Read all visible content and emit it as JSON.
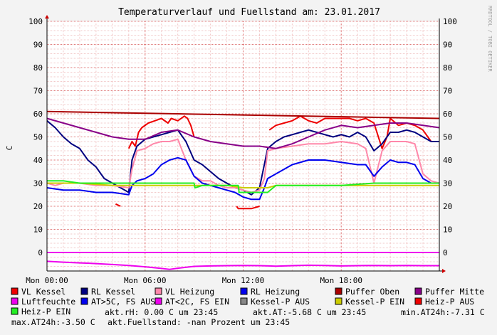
{
  "chart_data": {
    "type": "line",
    "title": "Temperaturverlauf und Fuellstand am: 23.01.2017",
    "ylabel": "C",
    "xlabel": "",
    "ylim": [
      -8,
      100
    ],
    "xlim": [
      0,
      24
    ],
    "y_ticks": [
      0,
      10,
      20,
      30,
      40,
      50,
      60,
      70,
      80,
      90,
      100
    ],
    "x_ticks": [
      {
        "x": 0,
        "label": "Mon 00:00"
      },
      {
        "x": 6,
        "label": "Mon 06:00"
      },
      {
        "x": 12,
        "label": "Mon 12:00"
      },
      {
        "x": 18,
        "label": "Mon 18:00"
      }
    ],
    "watermark": "RRDTOOL / TOBI OETIKER",
    "grid": true,
    "legend_position": "bottom",
    "series": [
      {
        "name": "VL Kessel",
        "color": "#EE0000",
        "x": [
          4.2,
          4.5,
          4.55,
          5.0,
          5.2,
          5.4,
          5.6,
          5.8,
          6.2,
          6.6,
          7.0,
          7.4,
          7.6,
          8.0,
          8.4,
          8.6,
          8.8,
          9.0,
          11.0,
          11.6,
          11.7,
          12.5,
          13.0,
          13.05,
          13.6,
          14.0,
          14.5,
          15.0,
          15.5,
          16.0,
          16.5,
          17.0,
          17.5,
          18.5,
          19.0,
          19.5,
          20.0,
          20.5,
          20.8,
          21.0,
          21.5,
          22.0,
          22.5,
          23.0,
          23.5,
          24.0
        ],
        "y": [
          21,
          20,
          null,
          45,
          48,
          46,
          52,
          54,
          56,
          57,
          58,
          56,
          58,
          57,
          59,
          58,
          55,
          50,
          null,
          20,
          19,
          19,
          20,
          null,
          53,
          55,
          56,
          57,
          59,
          57,
          56,
          58,
          58,
          58,
          57,
          58,
          56,
          45,
          50,
          58,
          55,
          56,
          55,
          53,
          48,
          48
        ]
      },
      {
        "name": "RL Kessel",
        "color": "#000080",
        "x": [
          0,
          0.5,
          1,
          1.5,
          2,
          2.5,
          3,
          3.5,
          4,
          4.5,
          5,
          5.2,
          5.5,
          6,
          6.5,
          7,
          7.5,
          8,
          8.5,
          9,
          9.5,
          10,
          10.5,
          11,
          11.5,
          12,
          12.5,
          13,
          13.5,
          14,
          14.5,
          15,
          15.5,
          16,
          16.5,
          17,
          17.5,
          18,
          18.5,
          19,
          19.5,
          20,
          20.5,
          21,
          21.5,
          22,
          22.5,
          23,
          23.5,
          24
        ],
        "y": [
          57,
          54,
          50,
          47,
          45,
          40,
          37,
          32,
          30,
          28,
          26,
          40,
          46,
          49,
          50,
          51,
          52,
          53,
          48,
          40,
          38,
          35,
          32,
          30,
          28,
          27,
          25,
          28,
          45,
          48,
          50,
          51,
          52,
          53,
          52,
          51,
          50,
          51,
          50,
          52,
          50,
          44,
          47,
          52,
          52,
          53,
          52,
          50,
          48,
          48
        ]
      },
      {
        "name": "VL Heizung",
        "color": "#FF88AA",
        "x": [
          0,
          0.5,
          1,
          2,
          3,
          4,
          5,
          5.2,
          5.5,
          6,
          6.5,
          7,
          7.5,
          8,
          8.5,
          9,
          9.5,
          10,
          10.5,
          11,
          11.5,
          12,
          12.5,
          13,
          13.3,
          13.5,
          14,
          15,
          16,
          17,
          18,
          19,
          19.5,
          20,
          20.5,
          21,
          21.5,
          22,
          22.5,
          23,
          23.5,
          24
        ],
        "y": [
          30,
          29,
          30,
          30,
          29,
          29,
          28,
          36,
          44,
          45,
          47,
          48,
          48,
          49,
          40,
          33,
          31,
          31,
          29,
          28,
          28,
          27,
          26,
          27,
          32,
          44,
          45,
          46,
          47,
          47,
          48,
          47,
          45,
          30,
          44,
          48,
          48,
          48,
          47,
          34,
          31,
          30
        ]
      },
      {
        "name": "RL Heizung",
        "color": "#0000EE",
        "x": [
          0,
          1,
          2,
          3,
          4,
          5,
          5.2,
          5.5,
          6,
          6.5,
          7,
          7.5,
          8,
          8.5,
          9,
          9.5,
          10,
          10.5,
          11,
          11.5,
          12,
          12.5,
          13,
          13.3,
          13.5,
          14,
          15,
          16,
          17,
          18,
          19,
          19.5,
          20,
          20.5,
          21,
          21.5,
          22,
          22.5,
          23,
          23.5,
          24
        ],
        "y": [
          28,
          27,
          27,
          26,
          26,
          25,
          29,
          31,
          32,
          34,
          38,
          40,
          41,
          40,
          33,
          30,
          29,
          28,
          27,
          26,
          24,
          23,
          23,
          28,
          32,
          34,
          38,
          40,
          40,
          39,
          38,
          38,
          33,
          37,
          40,
          39,
          39,
          38,
          32,
          30,
          30
        ]
      },
      {
        "name": "Puffer Oben",
        "color": "#AA0000",
        "x": [
          0,
          24
        ],
        "y": [
          61,
          58
        ]
      },
      {
        "name": "Puffer Mitte",
        "color": "#880088",
        "x": [
          0,
          1,
          2,
          3,
          4,
          5,
          6,
          7,
          8,
          9,
          10,
          11,
          12,
          13,
          14,
          15,
          16,
          17,
          18,
          19,
          20,
          21,
          22,
          23,
          24
        ],
        "y": [
          58,
          56,
          54,
          52,
          50,
          49,
          49,
          52,
          53,
          50,
          48,
          47,
          46,
          46,
          45,
          47,
          50,
          53,
          55,
          54,
          55,
          56,
          56,
          55,
          54
        ]
      },
      {
        "name": "Luftfeuchte",
        "color": "#EE00EE",
        "x": [
          0,
          24
        ],
        "y": [
          0,
          0
        ]
      },
      {
        "name": "AT>5C, FS AUS",
        "color": "#0000EE",
        "x": [],
        "y": []
      },
      {
        "name": "AT<2C, FS EIN",
        "color": "#EE00EE",
        "x": [
          0,
          1,
          2,
          3,
          4,
          5,
          6,
          7,
          7.5,
          8,
          9,
          10,
          11,
          12,
          13,
          14,
          15,
          16,
          17,
          18,
          19,
          20,
          21,
          22,
          23,
          24
        ],
        "y": [
          -3.8,
          -4.2,
          -4.5,
          -4.8,
          -5.2,
          -5.6,
          -6.2,
          -6.9,
          -7.3,
          -6.8,
          -6.0,
          -5.8,
          -5.7,
          -5.6,
          -5.7,
          -5.9,
          -5.7,
          -5.5,
          -5.6,
          -5.8,
          -5.7,
          -5.6,
          -5.7,
          -5.6,
          -5.7,
          -5.7
        ]
      },
      {
        "name": "Kessel-P AUS",
        "color": "#888888",
        "x": [],
        "y": []
      },
      {
        "name": "Kessel-P EIN",
        "color": "#CCCC00",
        "x": [
          0,
          2,
          4,
          6,
          8,
          9,
          9.5,
          10,
          11,
          12,
          13,
          13.5,
          14,
          16,
          18,
          20,
          22,
          24
        ],
        "y": [
          30,
          30,
          29,
          29,
          29,
          29,
          29,
          29,
          29,
          28,
          28,
          28,
          29,
          29,
          29,
          29,
          29,
          29
        ]
      },
      {
        "name": "Heiz-P AUS",
        "color": "#EE0000",
        "x": [],
        "y": []
      },
      {
        "name": "Heiz-P EIN",
        "color": "#22EE22",
        "x": [
          0,
          1,
          2,
          3,
          4,
          5,
          6,
          7,
          8,
          9,
          9.05,
          9.5,
          10,
          11,
          11.7,
          11.75,
          12,
          13,
          13.5,
          14,
          16,
          18,
          20,
          22,
          24
        ],
        "y": [
          31,
          31,
          30,
          30,
          30,
          30,
          30,
          30,
          30,
          30,
          28,
          29,
          29,
          29,
          29,
          26,
          26,
          26,
          26,
          29,
          29,
          29,
          30,
          30,
          30
        ]
      }
    ]
  },
  "legend": [
    {
      "label": "VL Kessel",
      "color": "#EE0000"
    },
    {
      "label": "RL Kessel",
      "color": "#000080"
    },
    {
      "label": "VL Heizung",
      "color": "#FF88AA"
    },
    {
      "label": "RL Heizung",
      "color": "#0000EE"
    },
    {
      "label": "Puffer Oben",
      "color": "#AA0000"
    },
    {
      "label": "Puffer Mitte",
      "color": "#880088"
    },
    {
      "label": "Luftfeuchte",
      "color": "#EE00EE"
    },
    {
      "label": "AT>5C, FS AUS",
      "color": "#0000EE"
    },
    {
      "label": "AT<2C, FS EIN",
      "color": "#EE00EE"
    },
    {
      "label": "Kessel-P AUS",
      "color": "#888888"
    },
    {
      "label": "Kessel-P EIN",
      "color": "#CCCC00"
    },
    {
      "label": "Heiz-P AUS",
      "color": "#EE0000"
    },
    {
      "label": "Heiz-P EIN",
      "color": "#22EE22"
    }
  ],
  "stats": [
    "akt.rH: 0.00 C um 23:45",
    "akt.AT:-5.68 C um 23:45",
    "min.AT24h:-7.31 C",
    "max.AT24h:-3.50 C",
    "akt.Fuellstand: -nan Prozent um 23:45"
  ]
}
